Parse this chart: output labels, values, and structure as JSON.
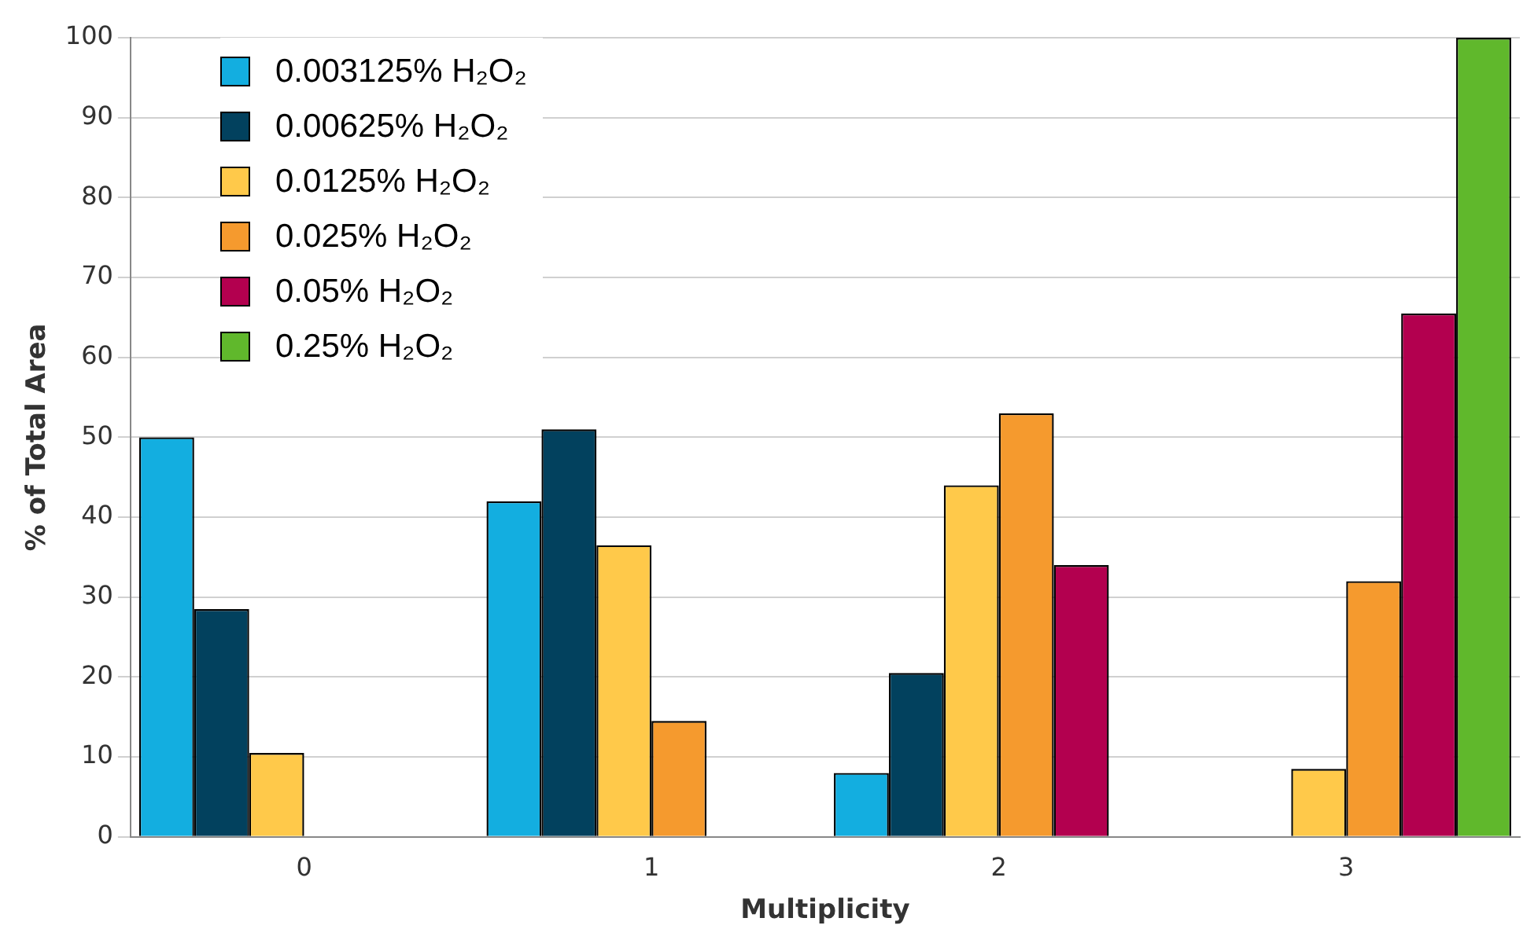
{
  "chart_data": {
    "type": "bar",
    "xlabel": "Multiplicity",
    "ylabel": "% of Total Area",
    "categories": [
      "0",
      "1",
      "2",
      "3"
    ],
    "series": [
      {
        "name": "0.003125% H₂O₂",
        "color": "#13aee0",
        "values": [
          50,
          42,
          8,
          null
        ]
      },
      {
        "name": "0.00625% H₂O₂",
        "color": "#02415e",
        "values": [
          28.5,
          51,
          20.5,
          null
        ]
      },
      {
        "name": "0.0125% H₂O₂",
        "color": "#ffc94a",
        "values": [
          10.5,
          36.5,
          44,
          8.5
        ]
      },
      {
        "name": "0.025% H₂O₂",
        "color": "#f59a2e",
        "values": [
          null,
          14.5,
          53,
          32
        ]
      },
      {
        "name": "0.05% H₂O₂",
        "color": "#b3004f",
        "values": [
          null,
          null,
          34,
          65.5
        ]
      },
      {
        "name": "0.25% H₂O₂",
        "color": "#60b82c",
        "values": [
          null,
          null,
          null,
          100
        ]
      }
    ],
    "ylim": [
      0,
      100
    ],
    "yticks": [
      0,
      10,
      20,
      30,
      40,
      50,
      60,
      70,
      80,
      90,
      100
    ],
    "grid": "y",
    "legend": "top left"
  }
}
